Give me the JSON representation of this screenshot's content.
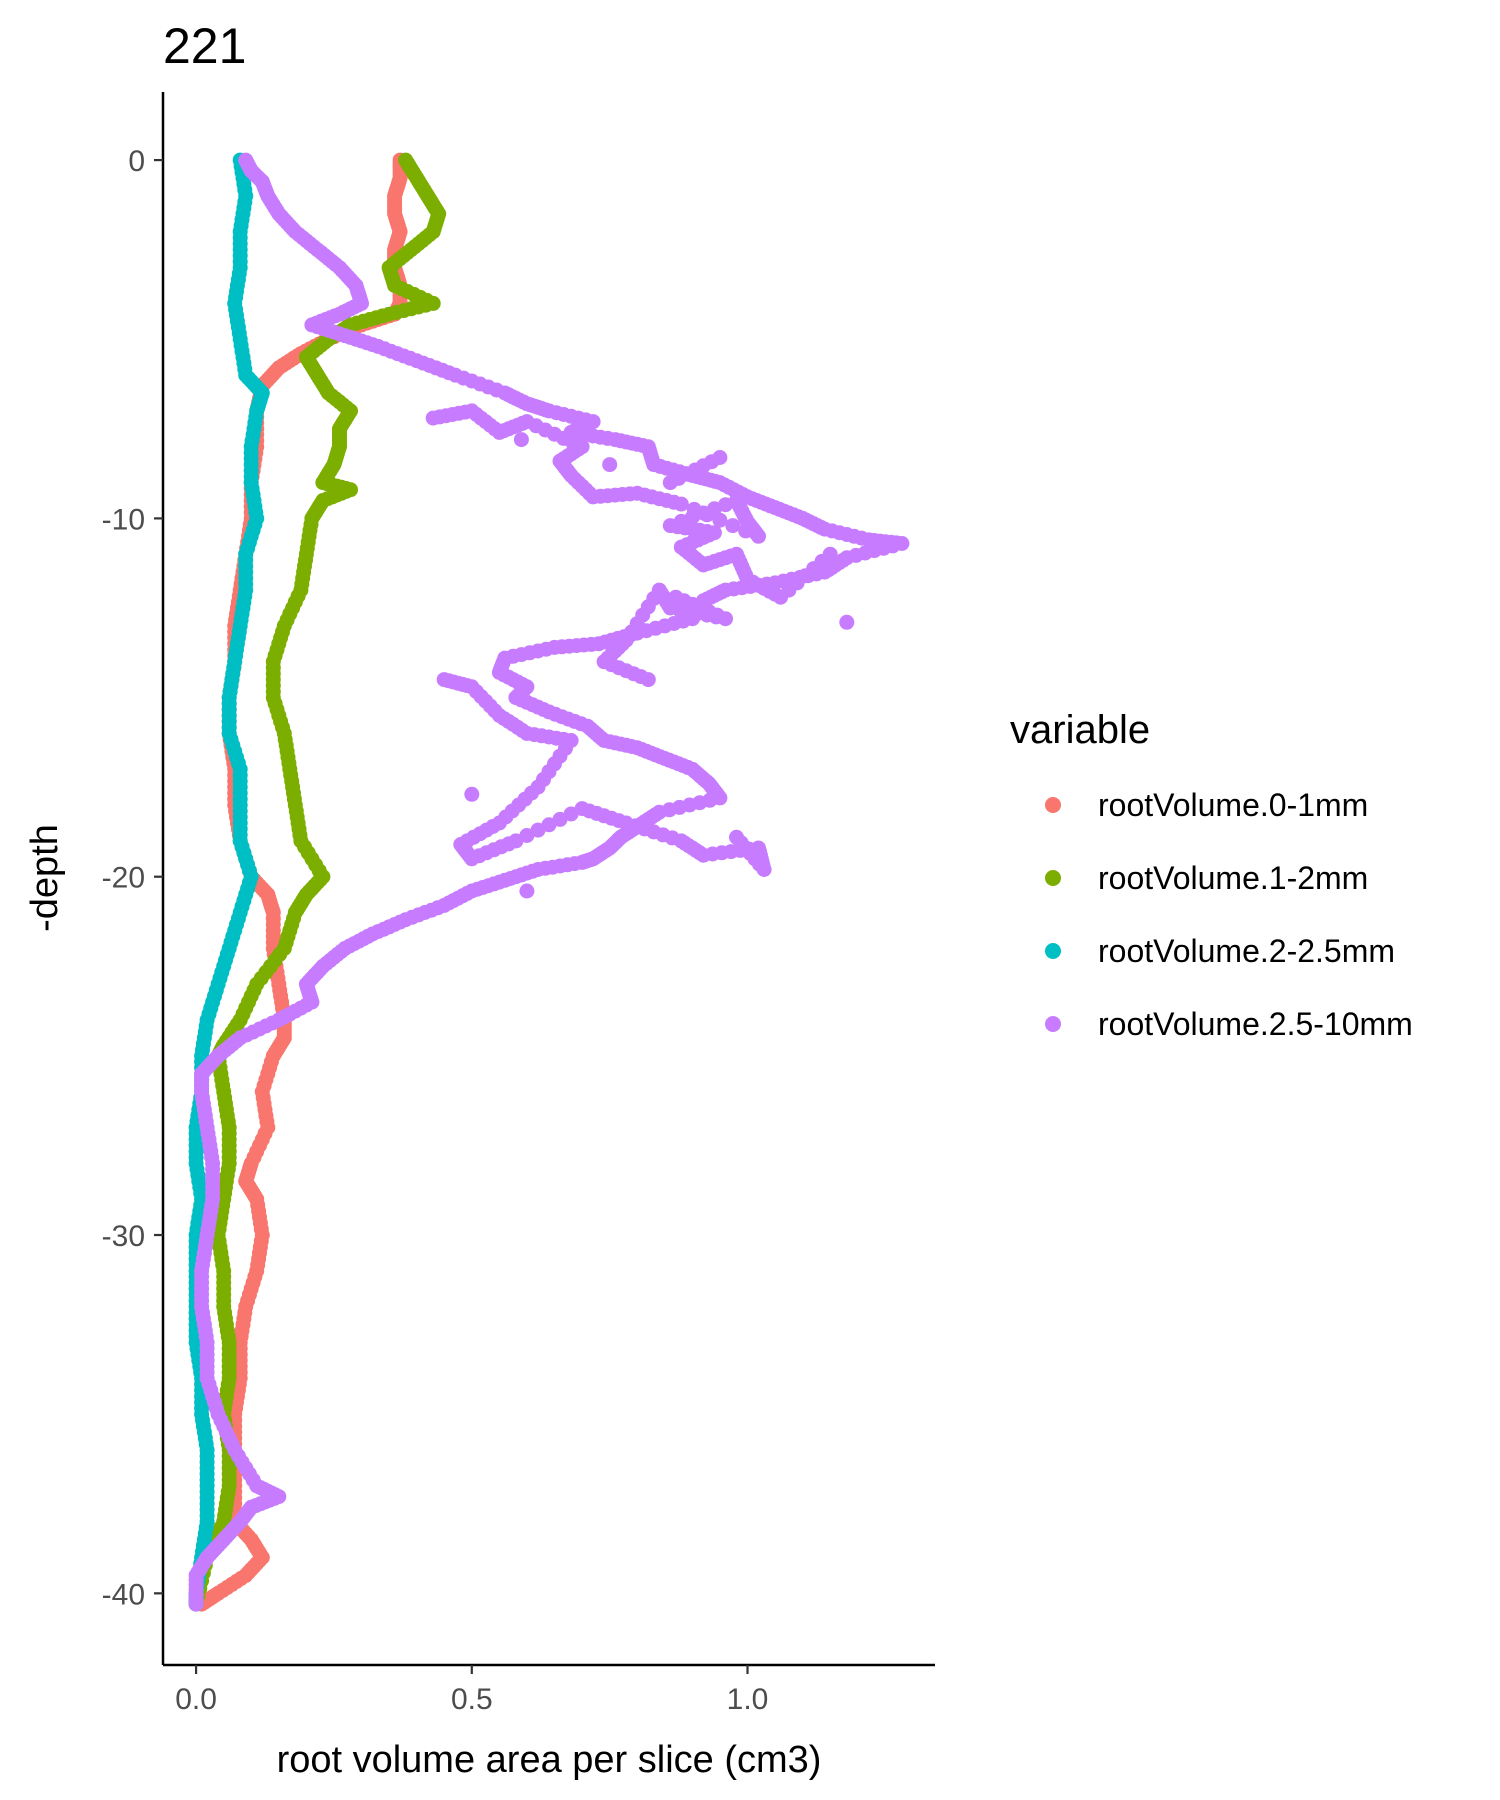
{
  "chart_data": {
    "type": "scatter",
    "title": "221",
    "xlabel": "root volume area per slice (cm3)",
    "ylabel": "-depth",
    "xlim": [
      -0.06,
      1.34
    ],
    "ylim": [
      -42,
      1.9
    ],
    "x_ticks": [
      0.0,
      0.5,
      1.0
    ],
    "x_tick_labels": [
      "0.0",
      "0.5",
      "1.0"
    ],
    "y_ticks": [
      0,
      -10,
      -20,
      -30,
      -40
    ],
    "y_tick_labels": [
      "0",
      "-10",
      "-20",
      "-30",
      "-40"
    ],
    "grid": false,
    "legend": {
      "title": "variable",
      "position": "right"
    },
    "series": [
      {
        "name": "rootVolume.0-1mm",
        "color": "#F8766D",
        "points": [
          [
            0.37,
            0
          ],
          [
            0.37,
            -0.5
          ],
          [
            0.36,
            -1
          ],
          [
            0.36,
            -1.5
          ],
          [
            0.37,
            -2
          ],
          [
            0.36,
            -2.5
          ],
          [
            0.36,
            -3
          ],
          [
            0.37,
            -3.5
          ],
          [
            0.37,
            -4
          ],
          [
            0.36,
            -4.3
          ],
          [
            0.3,
            -4.6
          ],
          [
            0.24,
            -5
          ],
          [
            0.19,
            -5.4
          ],
          [
            0.15,
            -5.8
          ],
          [
            0.12,
            -6.3
          ],
          [
            0.11,
            -7
          ],
          [
            0.11,
            -8
          ],
          [
            0.1,
            -9
          ],
          [
            0.1,
            -10
          ],
          [
            0.09,
            -11
          ],
          [
            0.08,
            -12
          ],
          [
            0.07,
            -13
          ],
          [
            0.07,
            -14
          ],
          [
            0.06,
            -15
          ],
          [
            0.06,
            -16
          ],
          [
            0.07,
            -17
          ],
          [
            0.07,
            -18
          ],
          [
            0.08,
            -19
          ],
          [
            0.1,
            -20
          ],
          [
            0.13,
            -20.5
          ],
          [
            0.14,
            -21
          ],
          [
            0.14,
            -22
          ],
          [
            0.15,
            -23
          ],
          [
            0.16,
            -24
          ],
          [
            0.16,
            -24.5
          ],
          [
            0.14,
            -25
          ],
          [
            0.12,
            -26
          ],
          [
            0.13,
            -27
          ],
          [
            0.1,
            -28
          ],
          [
            0.09,
            -28.5
          ],
          [
            0.11,
            -29
          ],
          [
            0.12,
            -30
          ],
          [
            0.11,
            -31
          ],
          [
            0.09,
            -32
          ],
          [
            0.08,
            -33
          ],
          [
            0.08,
            -34
          ],
          [
            0.07,
            -35
          ],
          [
            0.07,
            -36
          ],
          [
            0.07,
            -37
          ],
          [
            0.07,
            -38
          ],
          [
            0.1,
            -38.5
          ],
          [
            0.12,
            -39
          ],
          [
            0.09,
            -39.5
          ],
          [
            0.04,
            -40
          ],
          [
            0.01,
            -40.3
          ]
        ]
      },
      {
        "name": "rootVolume.1-2mm",
        "color": "#7CAE00",
        "points": [
          [
            0.38,
            0
          ],
          [
            0.4,
            -0.5
          ],
          [
            0.42,
            -1
          ],
          [
            0.44,
            -1.5
          ],
          [
            0.43,
            -2
          ],
          [
            0.39,
            -2.5
          ],
          [
            0.35,
            -3
          ],
          [
            0.36,
            -3.5
          ],
          [
            0.43,
            -4
          ],
          [
            0.35,
            -4.3
          ],
          [
            0.28,
            -4.6
          ],
          [
            0.24,
            -5
          ],
          [
            0.2,
            -5.5
          ],
          [
            0.22,
            -6
          ],
          [
            0.24,
            -6.5
          ],
          [
            0.28,
            -7
          ],
          [
            0.26,
            -7.5
          ],
          [
            0.26,
            -8
          ],
          [
            0.25,
            -8.5
          ],
          [
            0.23,
            -9
          ],
          [
            0.28,
            -9.2
          ],
          [
            0.23,
            -9.5
          ],
          [
            0.21,
            -10
          ],
          [
            0.2,
            -11
          ],
          [
            0.19,
            -12
          ],
          [
            0.16,
            -13
          ],
          [
            0.14,
            -14
          ],
          [
            0.14,
            -15
          ],
          [
            0.16,
            -16
          ],
          [
            0.17,
            -17
          ],
          [
            0.18,
            -18
          ],
          [
            0.19,
            -19
          ],
          [
            0.23,
            -20
          ],
          [
            0.2,
            -20.5
          ],
          [
            0.18,
            -21
          ],
          [
            0.16,
            -22
          ],
          [
            0.11,
            -23
          ],
          [
            0.08,
            -24
          ],
          [
            0.05,
            -24.7
          ],
          [
            0.04,
            -25
          ],
          [
            0.05,
            -26
          ],
          [
            0.06,
            -27
          ],
          [
            0.06,
            -28
          ],
          [
            0.05,
            -29
          ],
          [
            0.04,
            -30
          ],
          [
            0.05,
            -31
          ],
          [
            0.05,
            -32
          ],
          [
            0.06,
            -33
          ],
          [
            0.06,
            -34
          ],
          [
            0.05,
            -35
          ],
          [
            0.06,
            -36
          ],
          [
            0.06,
            -37
          ],
          [
            0.05,
            -38
          ],
          [
            0.02,
            -39
          ],
          [
            0.0,
            -40.3
          ]
        ]
      },
      {
        "name": "rootVolume.2-2.5mm",
        "color": "#00BFC4",
        "points": [
          [
            0.08,
            0
          ],
          [
            0.09,
            -1
          ],
          [
            0.08,
            -2
          ],
          [
            0.08,
            -3
          ],
          [
            0.07,
            -4
          ],
          [
            0.08,
            -5
          ],
          [
            0.09,
            -6
          ],
          [
            0.12,
            -6.5
          ],
          [
            0.11,
            -7
          ],
          [
            0.1,
            -8
          ],
          [
            0.1,
            -9
          ],
          [
            0.11,
            -10
          ],
          [
            0.09,
            -11
          ],
          [
            0.09,
            -12
          ],
          [
            0.08,
            -13
          ],
          [
            0.07,
            -14
          ],
          [
            0.06,
            -15
          ],
          [
            0.06,
            -16
          ],
          [
            0.08,
            -17
          ],
          [
            0.08,
            -18
          ],
          [
            0.08,
            -19
          ],
          [
            0.1,
            -20
          ],
          [
            0.08,
            -21
          ],
          [
            0.06,
            -22
          ],
          [
            0.04,
            -23
          ],
          [
            0.02,
            -24
          ],
          [
            0.01,
            -25
          ],
          [
            0.01,
            -26
          ],
          [
            0.0,
            -27
          ],
          [
            0.0,
            -28
          ],
          [
            0.01,
            -29
          ],
          [
            0.0,
            -30
          ],
          [
            0.0,
            -31
          ],
          [
            0.0,
            -32
          ],
          [
            0.0,
            -33
          ],
          [
            0.01,
            -34
          ],
          [
            0.01,
            -35
          ],
          [
            0.02,
            -36
          ],
          [
            0.02,
            -37
          ],
          [
            0.02,
            -38
          ],
          [
            0.01,
            -39
          ],
          [
            0.0,
            -40
          ],
          [
            0.0,
            -40.3
          ]
        ]
      },
      {
        "name": "rootVolume.2.5-10mm",
        "color": "#C77CFF",
        "points": [
          [
            0.09,
            0
          ],
          [
            0.1,
            -0.3
          ],
          [
            0.12,
            -0.6
          ],
          [
            0.13,
            -1
          ],
          [
            0.15,
            -1.5
          ],
          [
            0.18,
            -2
          ],
          [
            0.22,
            -2.5
          ],
          [
            0.26,
            -3
          ],
          [
            0.29,
            -3.5
          ],
          [
            0.3,
            -4
          ],
          [
            0.26,
            -4.3
          ],
          [
            0.21,
            -4.6
          ],
          [
            0.27,
            -4.9
          ],
          [
            0.33,
            -5.2
          ],
          [
            0.4,
            -5.6
          ],
          [
            0.47,
            -6
          ],
          [
            0.56,
            -6.5
          ],
          [
            0.6,
            -6.8
          ],
          [
            0.64,
            -7
          ],
          [
            0.72,
            -7.3
          ],
          [
            0.68,
            -7.6
          ],
          [
            0.76,
            -7.8
          ],
          [
            0.82,
            -8
          ],
          [
            0.83,
            -8.5
          ],
          [
            0.9,
            -8.8
          ],
          [
            0.95,
            -9
          ],
          [
            1.0,
            -9.4
          ],
          [
            1.05,
            -9.7
          ],
          [
            1.1,
            -10
          ],
          [
            1.14,
            -10.3
          ],
          [
            1.22,
            -10.6
          ],
          [
            1.28,
            -10.7
          ],
          [
            1.18,
            -11.1
          ],
          [
            1.14,
            -11.5
          ],
          [
            1.05,
            -11.8
          ],
          [
            0.96,
            -12
          ],
          [
            0.92,
            -12.3
          ],
          [
            0.9,
            -12.8
          ],
          [
            0.8,
            -13.2
          ],
          [
            0.73,
            -13.5
          ],
          [
            0.65,
            -13.6
          ],
          [
            0.56,
            -13.9
          ],
          [
            0.55,
            -14.3
          ],
          [
            0.6,
            -14.7
          ],
          [
            0.58,
            -15
          ],
          [
            0.64,
            -15.4
          ],
          [
            0.71,
            -15.8
          ],
          [
            0.74,
            -16.2
          ],
          [
            0.8,
            -16.4
          ],
          [
            0.85,
            -16.7
          ],
          [
            0.9,
            -17
          ],
          [
            0.93,
            -17.4
          ],
          [
            0.95,
            -17.8
          ],
          [
            0.84,
            -18.2
          ],
          [
            0.8,
            -18.6
          ],
          [
            0.77,
            -18.9
          ],
          [
            0.75,
            -19.2
          ],
          [
            0.72,
            -19.5
          ],
          [
            0.7,
            -19.6
          ],
          [
            0.62,
            -19.8
          ],
          [
            0.56,
            -20.1
          ],
          [
            0.5,
            -20.4
          ],
          [
            0.45,
            -20.8
          ],
          [
            0.38,
            -21.2
          ],
          [
            0.32,
            -21.6
          ],
          [
            0.27,
            -22
          ],
          [
            0.23,
            -22.5
          ],
          [
            0.2,
            -23
          ],
          [
            0.21,
            -23.5
          ],
          [
            0.15,
            -24
          ],
          [
            0.08,
            -24.5
          ],
          [
            0.04,
            -25
          ],
          [
            0.01,
            -25.5
          ],
          [
            0.01,
            -26
          ],
          [
            0.02,
            -27
          ],
          [
            0.03,
            -28
          ],
          [
            0.03,
            -29
          ],
          [
            0.02,
            -30
          ],
          [
            0.01,
            -31
          ],
          [
            0.01,
            -32
          ],
          [
            0.02,
            -33
          ],
          [
            0.02,
            -34
          ],
          [
            0.04,
            -35
          ],
          [
            0.07,
            -36
          ],
          [
            0.11,
            -37
          ],
          [
            0.15,
            -37.3
          ],
          [
            0.1,
            -37.6
          ],
          [
            0.08,
            -38
          ],
          [
            0.05,
            -38.5
          ],
          [
            0.02,
            -39
          ],
          [
            0.0,
            -39.5
          ],
          [
            0.0,
            -40.3
          ],
          [
            0.5,
            -17.7
          ],
          [
            0.6,
            -20.4
          ],
          [
            0.45,
            -14.5
          ],
          [
            0.5,
            -14.7
          ],
          [
            0.55,
            -15.5
          ],
          [
            0.6,
            -16
          ],
          [
            0.68,
            -16.2
          ],
          [
            0.62,
            -17.5
          ],
          [
            0.55,
            -18.5
          ],
          [
            0.48,
            -19.1
          ],
          [
            0.5,
            -19.5
          ],
          [
            0.58,
            -19.0
          ],
          [
            0.7,
            -18.1
          ],
          [
            0.78,
            -18.5
          ],
          [
            0.88,
            -19
          ],
          [
            0.92,
            -19.4
          ],
          [
            1.02,
            -19.2
          ],
          [
            1.03,
            -19.8
          ],
          [
            0.98,
            -18.9
          ],
          [
            0.82,
            -14.5
          ],
          [
            0.74,
            -14.0
          ],
          [
            0.78,
            -13.4
          ],
          [
            0.84,
            -12.0
          ],
          [
            0.86,
            -12.5
          ],
          [
            0.96,
            -12.8
          ],
          [
            0.87,
            -12.2
          ],
          [
            1.18,
            -12.9
          ],
          [
            1.15,
            -11.0
          ],
          [
            1.06,
            -12.2
          ],
          [
            1.0,
            -11.7
          ],
          [
            0.98,
            -11.0
          ],
          [
            0.92,
            -11.3
          ],
          [
            0.88,
            -10.8
          ],
          [
            0.94,
            -10.4
          ],
          [
            0.86,
            -10.2
          ],
          [
            0.98,
            -9.5
          ],
          [
            1.0,
            -10.1
          ],
          [
            1.02,
            -10.5
          ],
          [
            0.88,
            -9.6
          ],
          [
            0.8,
            -9.3
          ],
          [
            0.72,
            -9.4
          ],
          [
            0.68,
            -8.8
          ],
          [
            0.66,
            -8.4
          ],
          [
            0.7,
            -8.0
          ],
          [
            0.6,
            -7.3
          ],
          [
            0.55,
            -7.6
          ],
          [
            0.5,
            -7.0
          ],
          [
            0.43,
            -7.2
          ],
          [
            0.59,
            -7.8
          ],
          [
            0.75,
            -8.5
          ],
          [
            0.95,
            -8.3
          ],
          [
            0.86,
            -9.0
          ]
        ]
      }
    ]
  }
}
